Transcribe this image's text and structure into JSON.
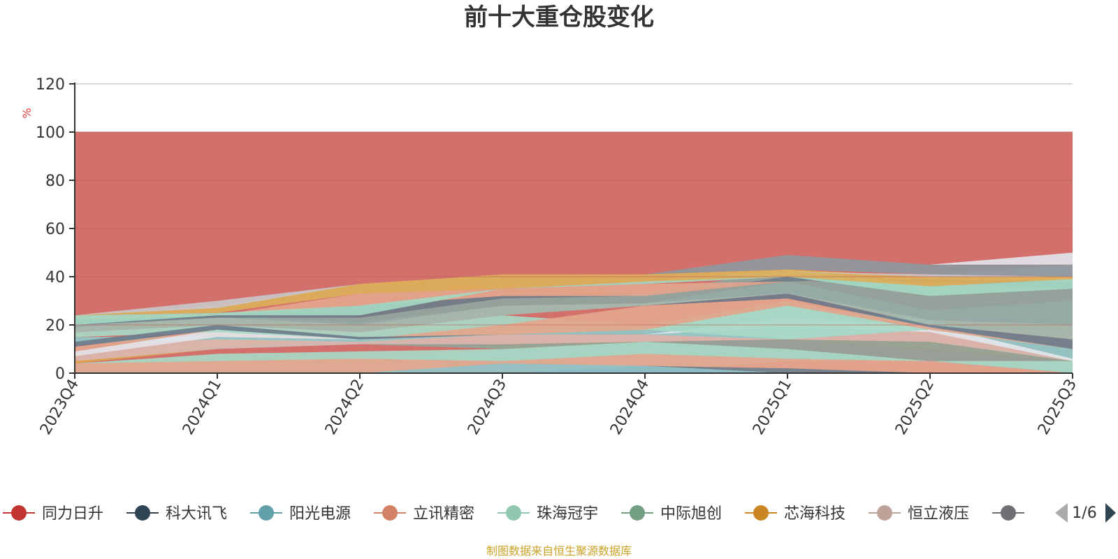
{
  "colors": {
    "title": "#333333",
    "axis": "#333333",
    "grid": "#cccccc",
    "unit": "#e53935",
    "footer": "#c9a227",
    "pager_active": "#2f4554",
    "pager_inactive": "#aaaaaa"
  },
  "footer": {
    "text": "制图数据来自恒生聚源数据库"
  },
  "pager": {
    "text": "1/6",
    "prev_icon": "triangle-left-icon",
    "next_icon": "triangle-right-icon"
  },
  "chart_data": {
    "type": "area",
    "title": "前十大重仓股变化",
    "ylabel": "%",
    "xlabel": "",
    "ylim": [
      0,
      120
    ],
    "yticks": [
      0,
      20,
      40,
      60,
      80,
      100,
      120
    ],
    "grid": true,
    "legend_position": "bottom",
    "categories": [
      "2023Q4",
      "2024Q1",
      "2024Q2",
      "2024Q3",
      "2024Q4",
      "2025Q1",
      "2025Q2",
      "2025Q3"
    ],
    "background_band": {
      "y0": 0,
      "y1": 100,
      "color": "#d4706c"
    },
    "legend": [
      {
        "name": "同力日升",
        "color": "#c23531"
      },
      {
        "name": "科大讯飞",
        "color": "#2f4554"
      },
      {
        "name": "阳光电源",
        "color": "#61a0a8"
      },
      {
        "name": "立讯精密",
        "color": "#d48265"
      },
      {
        "name": "珠海冠宇",
        "color": "#91c7ae"
      },
      {
        "name": "中际旭创",
        "color": "#749f83"
      },
      {
        "name": "芯海科技",
        "color": "#ca8622"
      },
      {
        "name": "恒立液压",
        "color": "#bda29a"
      },
      {
        "name": "",
        "color": "#6e7074"
      }
    ],
    "bands": [
      {
        "color": "#91a39a",
        "lower": [
          0,
          0,
          0,
          0,
          0,
          0,
          0,
          0
        ],
        "upper": [
          3,
          4,
          5,
          10,
          13,
          14,
          10,
          5
        ]
      },
      {
        "color": "#a8d8c5",
        "lower": [
          0,
          0,
          0,
          0,
          0,
          0,
          0,
          0
        ],
        "upper": [
          4,
          8,
          9,
          10,
          13,
          10,
          5,
          5
        ]
      },
      {
        "color": "#d46e6c",
        "lower": [
          0,
          0,
          0,
          0,
          0,
          0,
          0,
          0
        ],
        "upper": [
          0,
          0,
          0,
          0,
          0,
          5,
          5,
          0
        ]
      },
      {
        "color": "#e3a58c",
        "lower": [
          0,
          0,
          0,
          0,
          0,
          0,
          0,
          0
        ],
        "upper": [
          4,
          5,
          6,
          5,
          8,
          6,
          5,
          0
        ]
      },
      {
        "color": "#6f7f8e",
        "lower": [
          0,
          0,
          0,
          0,
          0,
          0,
          0,
          0
        ],
        "upper": [
          0,
          0,
          0,
          0,
          3,
          2,
          0,
          0
        ]
      },
      {
        "color": "#8fc2c8",
        "lower": [
          0,
          0,
          0,
          0,
          0,
          0,
          0,
          0
        ],
        "upper": [
          0,
          0,
          0,
          4,
          3,
          0,
          0,
          0
        ]
      },
      {
        "color": "#e2a44e",
        "lower": [
          4,
          10,
          14,
          10,
          13,
          14,
          10,
          5
        ],
        "upper": [
          5,
          14,
          14,
          12,
          13,
          14,
          13,
          6
        ]
      },
      {
        "color": "#93a39a",
        "lower": [
          5,
          10,
          12,
          10,
          13,
          14,
          10,
          5
        ],
        "upper": [
          5,
          11,
          14,
          12,
          13,
          14,
          13,
          6
        ]
      },
      {
        "color": "#dab7b0",
        "lower": [
          5,
          10,
          12,
          12,
          13,
          14,
          13,
          5
        ],
        "upper": [
          7,
          15,
          14,
          16,
          16,
          19,
          17,
          6
        ]
      },
      {
        "color": "#8fc8c8",
        "lower": [
          12,
          14,
          13,
          16,
          16,
          14,
          18,
          5
        ],
        "upper": [
          15,
          15,
          14,
          16,
          18,
          28,
          22,
          10
        ]
      },
      {
        "color": "#e3e6ec",
        "lower": [
          7,
          15,
          14,
          16,
          16,
          19,
          17,
          5
        ],
        "upper": [
          9,
          18,
          14,
          16,
          16,
          23,
          20,
          6
        ]
      },
      {
        "color": "#a8d8c5",
        "lower": [
          15,
          17,
          14,
          16,
          18,
          14,
          18,
          10
        ],
        "upper": [
          17,
          20,
          17,
          24,
          20,
          30,
          18,
          14
        ]
      },
      {
        "color": "#e3a58c",
        "lower": [
          9,
          18,
          14,
          16,
          18,
          28,
          18,
          10
        ],
        "upper": [
          11,
          18,
          14,
          20,
          28,
          31,
          19,
          14
        ]
      },
      {
        "color": "#6c7c8c",
        "lower": [
          11,
          18,
          14,
          16,
          28,
          31,
          19,
          10
        ],
        "upper": [
          13,
          20,
          15,
          16,
          28,
          33,
          20,
          14
        ]
      },
      {
        "color": "#a3bcb0",
        "lower": [
          17,
          20,
          17,
          24,
          28,
          33,
          20,
          14
        ],
        "upper": [
          19,
          23,
          20,
          28,
          29,
          34,
          22,
          20
        ]
      },
      {
        "color": "#dfe3ea",
        "lower": [
          19,
          23,
          20,
          28,
          29,
          33,
          22,
          20
        ],
        "upper": [
          20,
          24,
          21,
          28,
          29,
          38,
          26,
          30
        ]
      },
      {
        "color": "#8fa6a0",
        "lower": [
          19,
          23,
          20,
          28,
          29,
          33,
          22,
          20
        ],
        "upper": [
          20,
          24,
          23,
          31,
          33,
          43,
          37,
          35
        ]
      },
      {
        "color": "#6e7d8a",
        "lower": [
          20,
          23,
          23,
          31,
          32,
          38,
          38,
          35
        ],
        "upper": [
          22,
          24,
          28,
          32,
          32,
          40,
          39,
          39
        ]
      },
      {
        "color": "#e3a58c",
        "lower": [
          22,
          24,
          28,
          32,
          32,
          38,
          39,
          38
        ],
        "upper": [
          24,
          24,
          33,
          35,
          37,
          38,
          40,
          40
        ]
      },
      {
        "color": "#a3d8c2",
        "lower": [
          20,
          24,
          24,
          35,
          37,
          40,
          32,
          35
        ],
        "upper": [
          24,
          25,
          28,
          35,
          38,
          43,
          36,
          39
        ]
      },
      {
        "color": "#dcaf5a",
        "lower": [
          24,
          25,
          33,
          35,
          38,
          40,
          36,
          39
        ],
        "upper": [
          24,
          28,
          37,
          41,
          41,
          43,
          40,
          40
        ]
      },
      {
        "color": "#c9c5c8",
        "lower": [
          24,
          27,
          37,
          41,
          41,
          42,
          40,
          40
        ],
        "upper": [
          24,
          30,
          37,
          41,
          41,
          42,
          41,
          45
        ]
      },
      {
        "color": "#8e979f",
        "lower": [
          24,
          30,
          37,
          41,
          41,
          43,
          41,
          40
        ],
        "upper": [
          24,
          30,
          37,
          41,
          41,
          49,
          45,
          45
        ]
      },
      {
        "color": "#e1e4ea",
        "lower": [
          24,
          30,
          37,
          41,
          41,
          49,
          45,
          45
        ],
        "upper": [
          24,
          30,
          37,
          41,
          41,
          49,
          45,
          50
        ]
      }
    ]
  }
}
